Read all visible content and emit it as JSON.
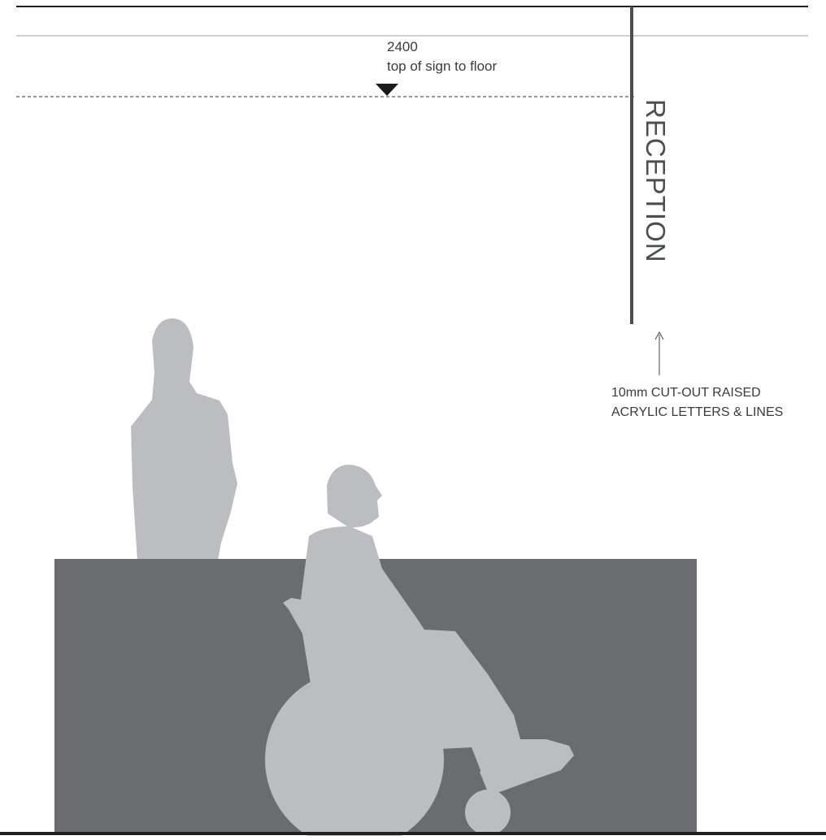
{
  "dimension": {
    "value": "2400",
    "description": "top of sign to floor"
  },
  "sign": {
    "text": "RECEPTION"
  },
  "note": {
    "line1": "10mm CUT-OUT RAISED",
    "line2": "ACRYLIC LETTERS & LINES"
  },
  "colors": {
    "counter": "#6b6c70",
    "figures": "#bcbdc0",
    "sign_bar": "#4a4f52",
    "lines": "#222222"
  }
}
